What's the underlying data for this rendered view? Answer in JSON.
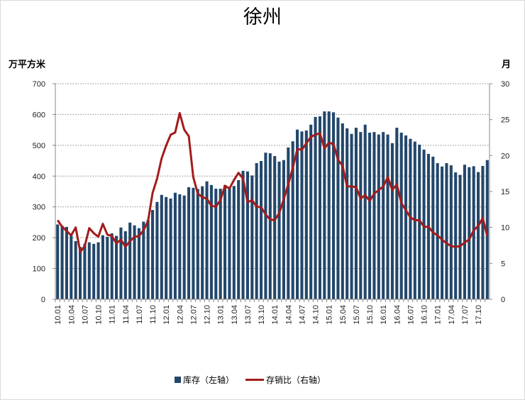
{
  "chart_data": {
    "type": "bar+line",
    "title": "徐州",
    "y_left_label": "万平方米",
    "y_right_label": "月",
    "y_left_lim": [
      0,
      700
    ],
    "y_left_ticks": [
      "0",
      "100",
      "200",
      "300",
      "400",
      "500",
      "600",
      "700"
    ],
    "y_right_lim": [
      0,
      30
    ],
    "y_right_ticks": [
      "0",
      "5",
      "10",
      "15",
      "20",
      "25",
      "30"
    ],
    "grid": true,
    "legend_position": "bottom",
    "x_tick_labels": [
      "10.01",
      "10.04",
      "10.07",
      "10.10",
      "11.01",
      "11.04",
      "11.07",
      "11.10",
      "12.01",
      "12.04",
      "12.07",
      "12.10",
      "13.01",
      "13.04",
      "13.07",
      "13.10",
      "14.01",
      "14.04",
      "14.07",
      "14.10",
      "15.01",
      "15.04",
      "15.07",
      "15.10",
      "16.01",
      "16.04",
      "16.07",
      "16.10",
      "17.01",
      "17.04",
      "17.07",
      "17.10"
    ],
    "x_start": "10.01",
    "x_end": "17.12",
    "colors": {
      "bar": "#23476b",
      "line": "#a31b1b"
    },
    "series": [
      {
        "name": "库存（左轴）",
        "type": "bar",
        "axis": "left",
        "values": [
          243,
          239,
          235,
          208,
          189,
          170,
          180,
          185,
          180,
          185,
          208,
          203,
          214,
          206,
          233,
          221,
          249,
          240,
          231,
          252,
          258,
          290,
          316,
          339,
          332,
          327,
          346,
          341,
          337,
          364,
          362,
          358,
          367,
          383,
          371,
          359,
          359,
          371,
          362,
          368,
          387,
          417,
          415,
          402,
          442,
          449,
          476,
          474,
          465,
          447,
          452,
          493,
          513,
          551,
          545,
          548,
          567,
          592,
          594,
          610,
          610,
          607,
          590,
          571,
          555,
          537,
          557,
          543,
          567,
          541,
          543,
          535,
          543,
          535,
          507,
          557,
          541,
          532,
          521,
          512,
          502,
          486,
          472,
          463,
          442,
          431,
          442,
          435,
          412,
          404,
          437,
          429,
          432,
          413,
          433,
          452
        ]
      },
      {
        "name": "存销比（右轴）",
        "type": "line",
        "axis": "right",
        "values": [
          11.0,
          10.1,
          9.5,
          8.9,
          10.0,
          6.6,
          7.4,
          9.9,
          9.2,
          8.7,
          10.5,
          9.0,
          8.8,
          7.8,
          8.3,
          7.3,
          8.1,
          8.7,
          8.8,
          9.6,
          10.9,
          14.8,
          16.8,
          19.6,
          21.4,
          22.9,
          23.2,
          25.9,
          23.6,
          22.7,
          17.0,
          14.7,
          14.2,
          14.0,
          13.0,
          12.9,
          13.8,
          15.8,
          15.4,
          16.6,
          17.6,
          16.8,
          13.5,
          13.8,
          12.9,
          12.8,
          11.8,
          11.1,
          11.0,
          12.0,
          13.9,
          16.0,
          18.3,
          20.9,
          20.8,
          21.7,
          22.6,
          22.9,
          23.1,
          21.0,
          21.8,
          21.6,
          19.4,
          18.6,
          15.7,
          15.7,
          15.6,
          14.0,
          14.5,
          13.7,
          14.7,
          15.2,
          15.7,
          17.0,
          15.2,
          16.0,
          13.4,
          12.4,
          11.4,
          11.0,
          11.0,
          10.1,
          10.1,
          9.3,
          8.9,
          8.3,
          7.8,
          7.4,
          7.3,
          7.4,
          7.9,
          8.3,
          9.6,
          10.2,
          11.3,
          8.8
        ]
      }
    ]
  }
}
